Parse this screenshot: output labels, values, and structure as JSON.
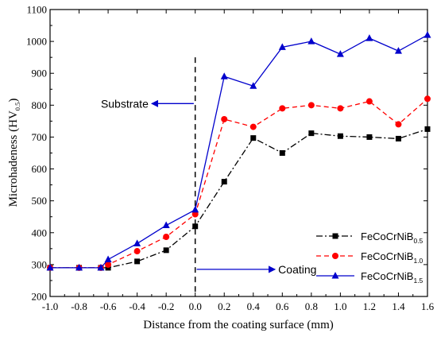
{
  "chart_data": {
    "type": "line",
    "title": "",
    "xlabel": "Distance from the coating surface (mm)",
    "ylabel": {
      "main": "Microhadeness (HV",
      "sub": "0.5",
      "close": ")"
    },
    "xlim": [
      -1.0,
      1.6
    ],
    "ylim": [
      200,
      1100
    ],
    "xticks": [
      -1.0,
      -0.8,
      -0.6,
      -0.4,
      -0.2,
      0.0,
      0.2,
      0.4,
      0.6,
      0.8,
      1.0,
      1.2,
      1.4,
      1.6
    ],
    "yticks": [
      200,
      300,
      400,
      500,
      600,
      700,
      800,
      900,
      1000,
      1100
    ],
    "x": [
      -1.0,
      -0.8,
      -0.65,
      -0.6,
      -0.4,
      -0.2,
      0.0,
      0.2,
      0.4,
      0.6,
      0.8,
      1.0,
      1.2,
      1.4,
      1.6
    ],
    "series": [
      {
        "name": "FeCoCrNiB",
        "name_sub": "0.5",
        "color": "#000000",
        "marker": "square",
        "dash": "dashdot",
        "values": [
          290,
          290,
          290,
          290,
          310,
          345,
          420,
          560,
          697,
          650,
          712,
          703,
          700,
          695,
          725
        ]
      },
      {
        "name": "FeCoCrNiB",
        "name_sub": "1.0",
        "color": "#ff0000",
        "marker": "circle",
        "dash": "dashed",
        "values": [
          290,
          290,
          290,
          300,
          342,
          387,
          458,
          756,
          732,
          790,
          800,
          790,
          812,
          740,
          820
        ]
      },
      {
        "name": "FeCoCrNiB",
        "name_sub": "1.5",
        "color": "#0000cc",
        "marker": "triangle",
        "dash": "solid",
        "values": [
          290,
          290,
          290,
          316,
          366,
          423,
          472,
          890,
          860,
          982,
          1000,
          960,
          1010,
          970,
          1020
        ]
      }
    ],
    "boundary_x": 0.0,
    "annotations": [
      {
        "text": "Substrate",
        "arrow_from": [
          -0.01,
          805
        ],
        "arrow_to": [
          -0.3,
          805
        ],
        "text_anchor": [
          -0.3,
          805
        ]
      },
      {
        "text": "Coating",
        "arrow_from": [
          0.01,
          285
        ],
        "arrow_to": [
          0.55,
          285
        ],
        "text_anchor": [
          0.56,
          285
        ]
      }
    ],
    "legend_position": "bottom-right",
    "grid": false
  }
}
